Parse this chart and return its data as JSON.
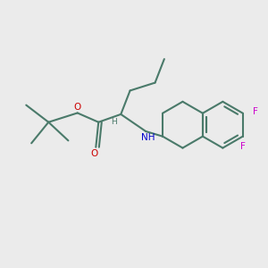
{
  "background_color": "#ebebeb",
  "bond_color": "#4a7a6a",
  "oxygen_color": "#cc0000",
  "nitrogen_color": "#0000cc",
  "fluorine_color": "#cc00cc",
  "line_width": 1.5,
  "figsize": [
    3.0,
    3.0
  ],
  "dpi": 100,
  "xlim": [
    0,
    10
  ],
  "ylim": [
    0,
    10
  ]
}
